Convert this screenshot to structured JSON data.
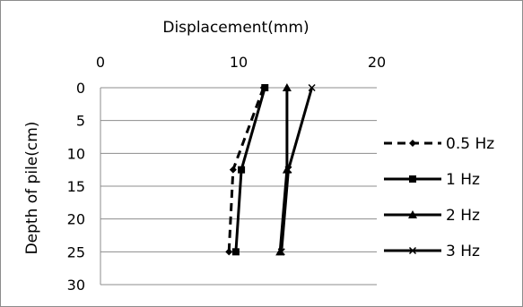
{
  "chart_data": {
    "type": "line",
    "title": "",
    "xlabel": "Displacement(mm)",
    "ylabel": "Depth of pile(cm)",
    "xlim": [
      0,
      20
    ],
    "ylim": [
      0,
      30
    ],
    "y_inverted": true,
    "x_axis_position": "top",
    "x_ticks": [
      0,
      10,
      20
    ],
    "x_tick_labels": [
      "0",
      "10",
      "20"
    ],
    "y_ticks": [
      0,
      5,
      10,
      15,
      20,
      25,
      30
    ],
    "y_tick_labels": [
      "0",
      "5",
      "10",
      "15",
      "20",
      "25",
      "30"
    ],
    "grid": "horizontal",
    "legend_position": "right",
    "series": [
      {
        "name": "0.5 Hz",
        "line_style": "dashed",
        "marker": "diamond",
        "color": "#000000",
        "points": [
          {
            "x": 11.8,
            "y": 0
          },
          {
            "x": 9.6,
            "y": 12.5
          },
          {
            "x": 9.3,
            "y": 25
          }
        ]
      },
      {
        "name": "1 Hz",
        "line_style": "solid",
        "marker": "square",
        "color": "#000000",
        "points": [
          {
            "x": 11.9,
            "y": 0
          },
          {
            "x": 10.2,
            "y": 12.5
          },
          {
            "x": 9.8,
            "y": 25
          }
        ]
      },
      {
        "name": "2 Hz",
        "line_style": "solid",
        "marker": "triangle",
        "color": "#000000",
        "points": [
          {
            "x": 13.5,
            "y": 0
          },
          {
            "x": 13.5,
            "y": 12.5
          },
          {
            "x": 13.0,
            "y": 25
          }
        ]
      },
      {
        "name": "3 Hz",
        "line_style": "solid",
        "marker": "x",
        "color": "#000000",
        "points": [
          {
            "x": 15.3,
            "y": 0
          },
          {
            "x": 13.6,
            "y": 12.5
          },
          {
            "x": 13.1,
            "y": 25
          }
        ]
      }
    ]
  }
}
